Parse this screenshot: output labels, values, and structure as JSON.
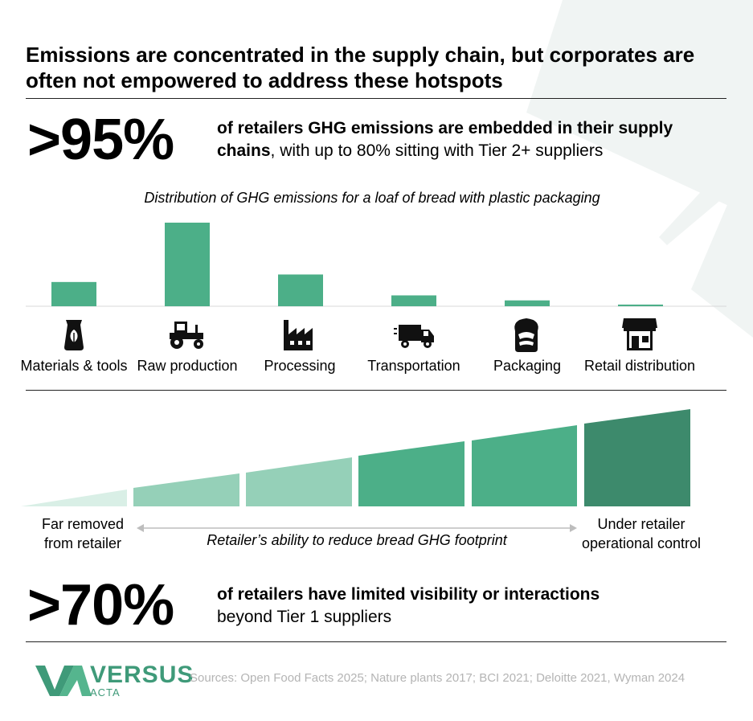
{
  "headline": "Emissions are concentrated in the supply chain, but corporates are often not empowered to address these hotspots",
  "stat1": {
    "value": ">95%",
    "text_bold": "of retailers GHG emissions are embedded in their supply chains",
    "text_rest": ", with up to 80% sitting with Tier 2+ suppliers"
  },
  "stat2": {
    "value": ">70%",
    "text_bold": "of retailers have limited visibility or interactions",
    "text_rest": "beyond Tier 1 suppliers"
  },
  "chart_data": {
    "type": "bar",
    "title": "Distribution of GHG emissions for a loaf of bread with plastic packaging",
    "categories": [
      "Materials & tools",
      "Raw production",
      "Processing",
      "Transportation",
      "Packaging",
      "Retail distribution"
    ],
    "values": [
      29,
      100,
      38,
      13,
      7,
      2
    ],
    "ylim": [
      0,
      100
    ],
    "color": "#4caf88",
    "icons": [
      "fertilizer-bag-icon",
      "tractor-icon",
      "factory-icon",
      "delivery-truck-icon",
      "bread-packaging-icon",
      "storefront-icon"
    ]
  },
  "gradient": {
    "left_label_line1": "Far removed",
    "left_label_line2": "from retailer",
    "right_label_line1": "Under retailer",
    "right_label_line2": "operational control",
    "middle_label": "Retailer’s ability to reduce bread GHG footprint",
    "segment_colors": [
      "#d9efe6",
      "#95d0b8",
      "#95d0b8",
      "#4caf88",
      "#4caf88",
      "#3d8a6c"
    ]
  },
  "footer": {
    "logo_main": "VERSUS",
    "logo_sub": "ACTA",
    "sources": "Sources: Open Food Facts 2025; Nature plants 2017; BCI 2021; Deloitte 2021, Wyman 2024"
  },
  "colors": {
    "accent": "#4caf88",
    "accent_dark": "#3d8a6c",
    "decor": "#f0f4f3"
  }
}
